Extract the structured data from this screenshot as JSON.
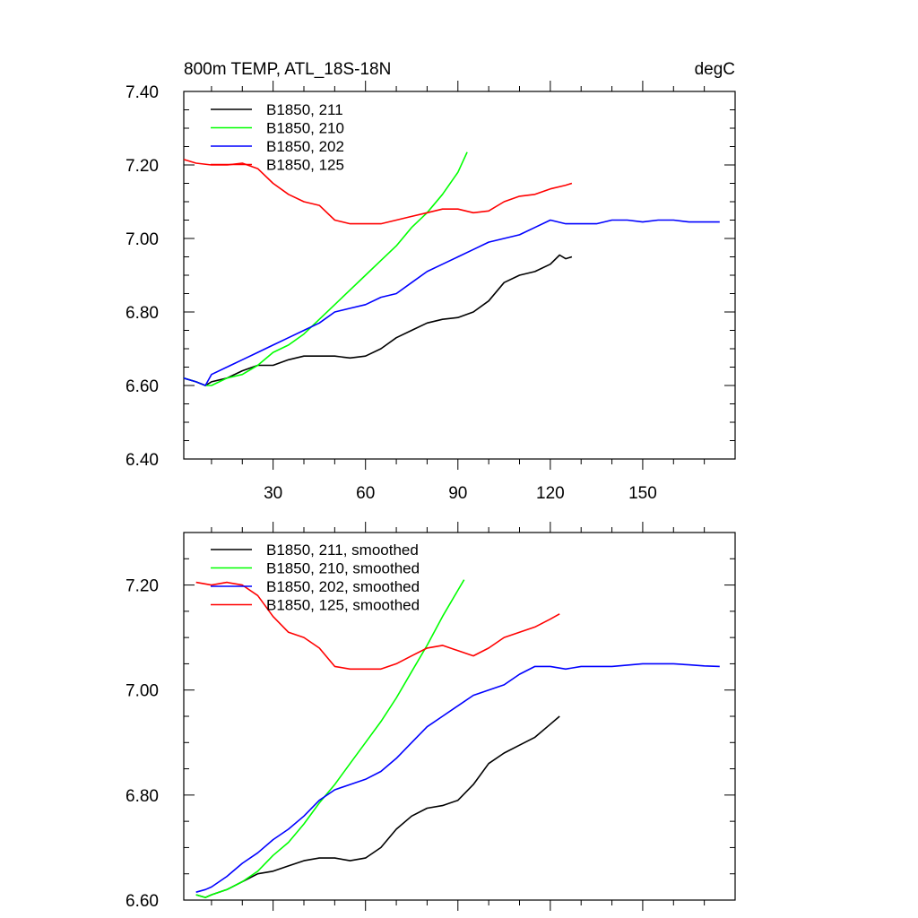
{
  "colors": {
    "211": "#000000",
    "210": "#00ff00",
    "202": "#0000ff",
    "125": "#ff0000"
  },
  "chart_data": [
    {
      "type": "line",
      "title": "800m TEMP, ATL_18S-18N",
      "units": "degC",
      "xlim": [
        1,
        180
      ],
      "ylim": [
        6.4,
        7.4
      ],
      "xticks": [
        30,
        60,
        90,
        120,
        150
      ],
      "xtick_labels": [
        "30",
        "60",
        "90",
        "120",
        "150"
      ],
      "yticks": [
        6.4,
        6.6,
        6.8,
        7.0,
        7.2,
        7.4
      ],
      "ytick_labels": [
        "6.40",
        "6.60",
        "6.80",
        "7.00",
        "7.20",
        "7.40"
      ],
      "legend": [
        "B1850, 211",
        "B1850, 210",
        "B1850, 202",
        "B1850, 125"
      ],
      "series": [
        {
          "name": "B1850, 211",
          "color": "#000000",
          "x": [
            1,
            5,
            8,
            10,
            15,
            20,
            25,
            30,
            35,
            40,
            45,
            50,
            55,
            60,
            65,
            70,
            75,
            80,
            85,
            90,
            95,
            100,
            105,
            110,
            115,
            120,
            123,
            125,
            127
          ],
          "y": [
            6.62,
            6.61,
            6.6,
            6.61,
            6.62,
            6.64,
            6.655,
            6.655,
            6.67,
            6.68,
            6.68,
            6.68,
            6.675,
            6.68,
            6.7,
            6.73,
            6.75,
            6.77,
            6.78,
            6.785,
            6.8,
            6.83,
            6.88,
            6.9,
            6.91,
            6.93,
            6.955,
            6.945,
            6.95
          ]
        },
        {
          "name": "B1850, 210",
          "color": "#00ff00",
          "x": [
            1,
            5,
            8,
            10,
            15,
            20,
            25,
            30,
            35,
            40,
            45,
            50,
            55,
            60,
            65,
            70,
            75,
            80,
            85,
            90,
            93
          ],
          "y": [
            6.62,
            6.61,
            6.6,
            6.6,
            6.62,
            6.63,
            6.655,
            6.69,
            6.71,
            6.74,
            6.78,
            6.82,
            6.86,
            6.9,
            6.94,
            6.98,
            7.03,
            7.07,
            7.12,
            7.18,
            7.235
          ]
        },
        {
          "name": "B1850, 202",
          "color": "#0000ff",
          "x": [
            1,
            5,
            8,
            10,
            15,
            20,
            25,
            30,
            35,
            40,
            45,
            50,
            55,
            60,
            65,
            70,
            75,
            80,
            85,
            90,
            95,
            100,
            105,
            110,
            115,
            120,
            125,
            130,
            135,
            140,
            145,
            150,
            155,
            160,
            165,
            170,
            175
          ],
          "y": [
            6.62,
            6.61,
            6.6,
            6.63,
            6.65,
            6.67,
            6.69,
            6.71,
            6.73,
            6.75,
            6.77,
            6.8,
            6.81,
            6.82,
            6.84,
            6.85,
            6.88,
            6.91,
            6.93,
            6.95,
            6.97,
            6.99,
            7.0,
            7.01,
            7.03,
            7.05,
            7.04,
            7.04,
            7.04,
            7.05,
            7.05,
            7.045,
            7.05,
            7.05,
            7.045,
            7.045,
            7.045
          ]
        },
        {
          "name": "B1850, 125",
          "color": "#ff0000",
          "x": [
            1,
            5,
            10,
            15,
            20,
            25,
            30,
            35,
            40,
            45,
            50,
            55,
            60,
            65,
            70,
            75,
            80,
            85,
            90,
            95,
            100,
            105,
            110,
            115,
            120,
            125,
            127
          ],
          "y": [
            7.215,
            7.205,
            7.2,
            7.2,
            7.205,
            7.19,
            7.15,
            7.12,
            7.1,
            7.09,
            7.05,
            7.04,
            7.04,
            7.04,
            7.05,
            7.06,
            7.07,
            7.08,
            7.08,
            7.07,
            7.075,
            7.1,
            7.115,
            7.12,
            7.135,
            7.145,
            7.15
          ]
        }
      ]
    },
    {
      "type": "line",
      "title": "",
      "xlim": [
        1,
        180
      ],
      "ylim": [
        6.6,
        7.3
      ],
      "yticks": [
        6.6,
        6.8,
        7.0,
        7.2
      ],
      "ytick_labels": [
        "6.60",
        "6.80",
        "7.00",
        "7.20"
      ],
      "xticks": [
        30,
        60,
        90,
        120,
        150
      ],
      "legend": [
        "B1850, 211, smoothed",
        "B1850, 210, smoothed",
        "B1850, 202, smoothed",
        "B1850, 125, smoothed"
      ],
      "series": [
        {
          "name": "B1850, 211, smoothed",
          "color": "#000000",
          "x": [
            5,
            8,
            10,
            15,
            20,
            25,
            30,
            35,
            40,
            45,
            50,
            55,
            60,
            65,
            70,
            75,
            80,
            85,
            90,
            95,
            100,
            105,
            110,
            115,
            120,
            123
          ],
          "y": [
            6.61,
            6.605,
            6.61,
            6.62,
            6.635,
            6.65,
            6.655,
            6.665,
            6.675,
            6.68,
            6.68,
            6.675,
            6.68,
            6.7,
            6.735,
            6.76,
            6.775,
            6.78,
            6.79,
            6.82,
            6.86,
            6.88,
            6.895,
            6.91,
            6.935,
            6.95
          ]
        },
        {
          "name": "B1850, 210, smoothed",
          "color": "#00ff00",
          "x": [
            5,
            8,
            10,
            15,
            20,
            25,
            30,
            35,
            40,
            45,
            50,
            55,
            60,
            65,
            70,
            75,
            80,
            85,
            90,
            92
          ],
          "y": [
            6.61,
            6.605,
            6.61,
            6.62,
            6.635,
            6.655,
            6.685,
            6.71,
            6.745,
            6.785,
            6.82,
            6.86,
            6.9,
            6.94,
            6.985,
            7.035,
            7.085,
            7.14,
            7.19,
            7.21
          ]
        },
        {
          "name": "B1850, 202, smoothed",
          "color": "#0000ff",
          "x": [
            5,
            8,
            10,
            15,
            20,
            25,
            30,
            35,
            40,
            45,
            50,
            55,
            60,
            65,
            70,
            75,
            80,
            85,
            90,
            95,
            100,
            105,
            110,
            115,
            120,
            125,
            130,
            140,
            150,
            160,
            165,
            170,
            175
          ],
          "y": [
            6.615,
            6.62,
            6.625,
            6.645,
            6.67,
            6.69,
            6.715,
            6.735,
            6.76,
            6.79,
            6.81,
            6.82,
            6.83,
            6.845,
            6.87,
            6.9,
            6.93,
            6.95,
            6.97,
            6.99,
            7.0,
            7.01,
            7.03,
            7.045,
            7.045,
            7.04,
            7.045,
            7.045,
            7.05,
            7.05,
            7.048,
            7.046,
            7.045
          ]
        },
        {
          "name": "B1850, 125, smoothed",
          "color": "#ff0000",
          "x": [
            5,
            10,
            15,
            20,
            25,
            30,
            35,
            40,
            45,
            50,
            55,
            60,
            65,
            70,
            75,
            80,
            85,
            90,
            95,
            100,
            105,
            110,
            115,
            120,
            123
          ],
          "y": [
            7.205,
            7.2,
            7.205,
            7.2,
            7.18,
            7.14,
            7.11,
            7.1,
            7.08,
            7.045,
            7.04,
            7.04,
            7.04,
            7.05,
            7.065,
            7.08,
            7.085,
            7.075,
            7.065,
            7.08,
            7.1,
            7.11,
            7.12,
            7.135,
            7.145
          ]
        }
      ]
    }
  ]
}
